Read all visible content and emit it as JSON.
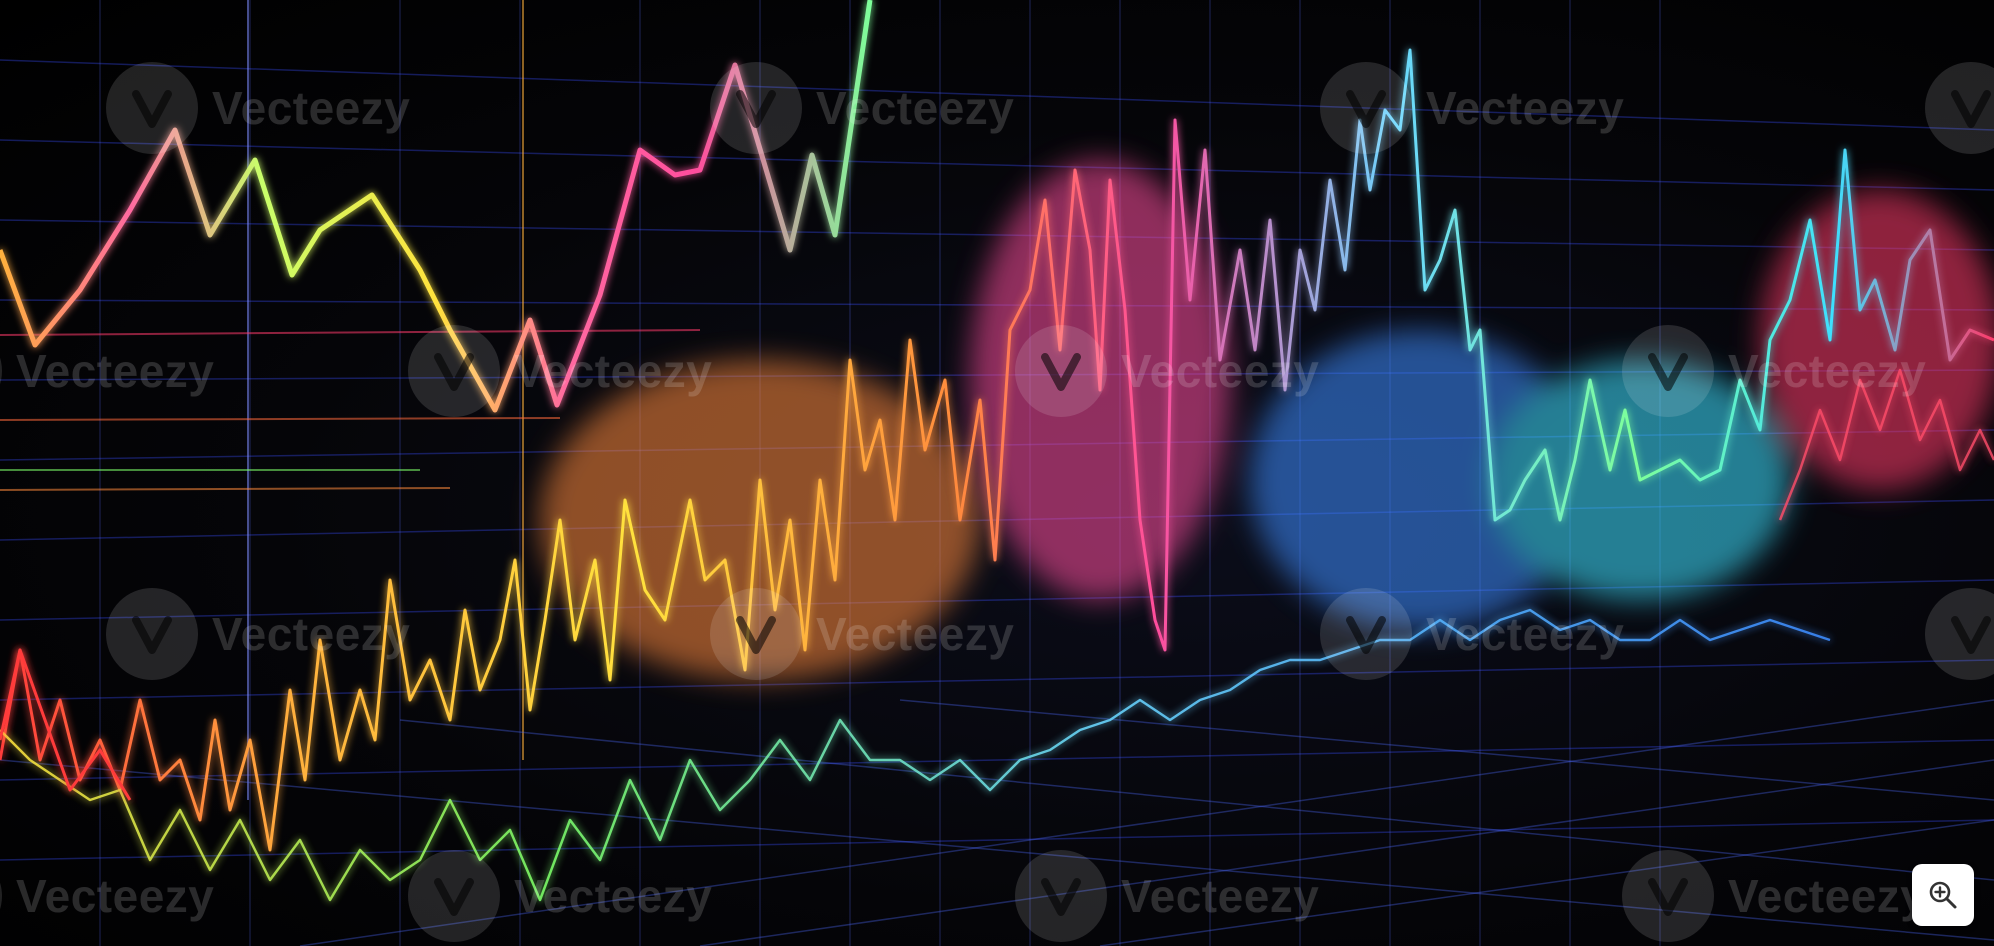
{
  "image": {
    "description_icon": "photo",
    "palette": [
      "#ff3b6b",
      "#ff8a3d",
      "#ffd23d",
      "#8dff6a",
      "#3de0ff",
      "#4d6bff",
      "#b34dff"
    ]
  },
  "watermark": {
    "text": "Vecteezy",
    "icon": "vecteezy-logo-icon"
  },
  "controls": {
    "zoom_icon": "zoom-in-icon"
  }
}
